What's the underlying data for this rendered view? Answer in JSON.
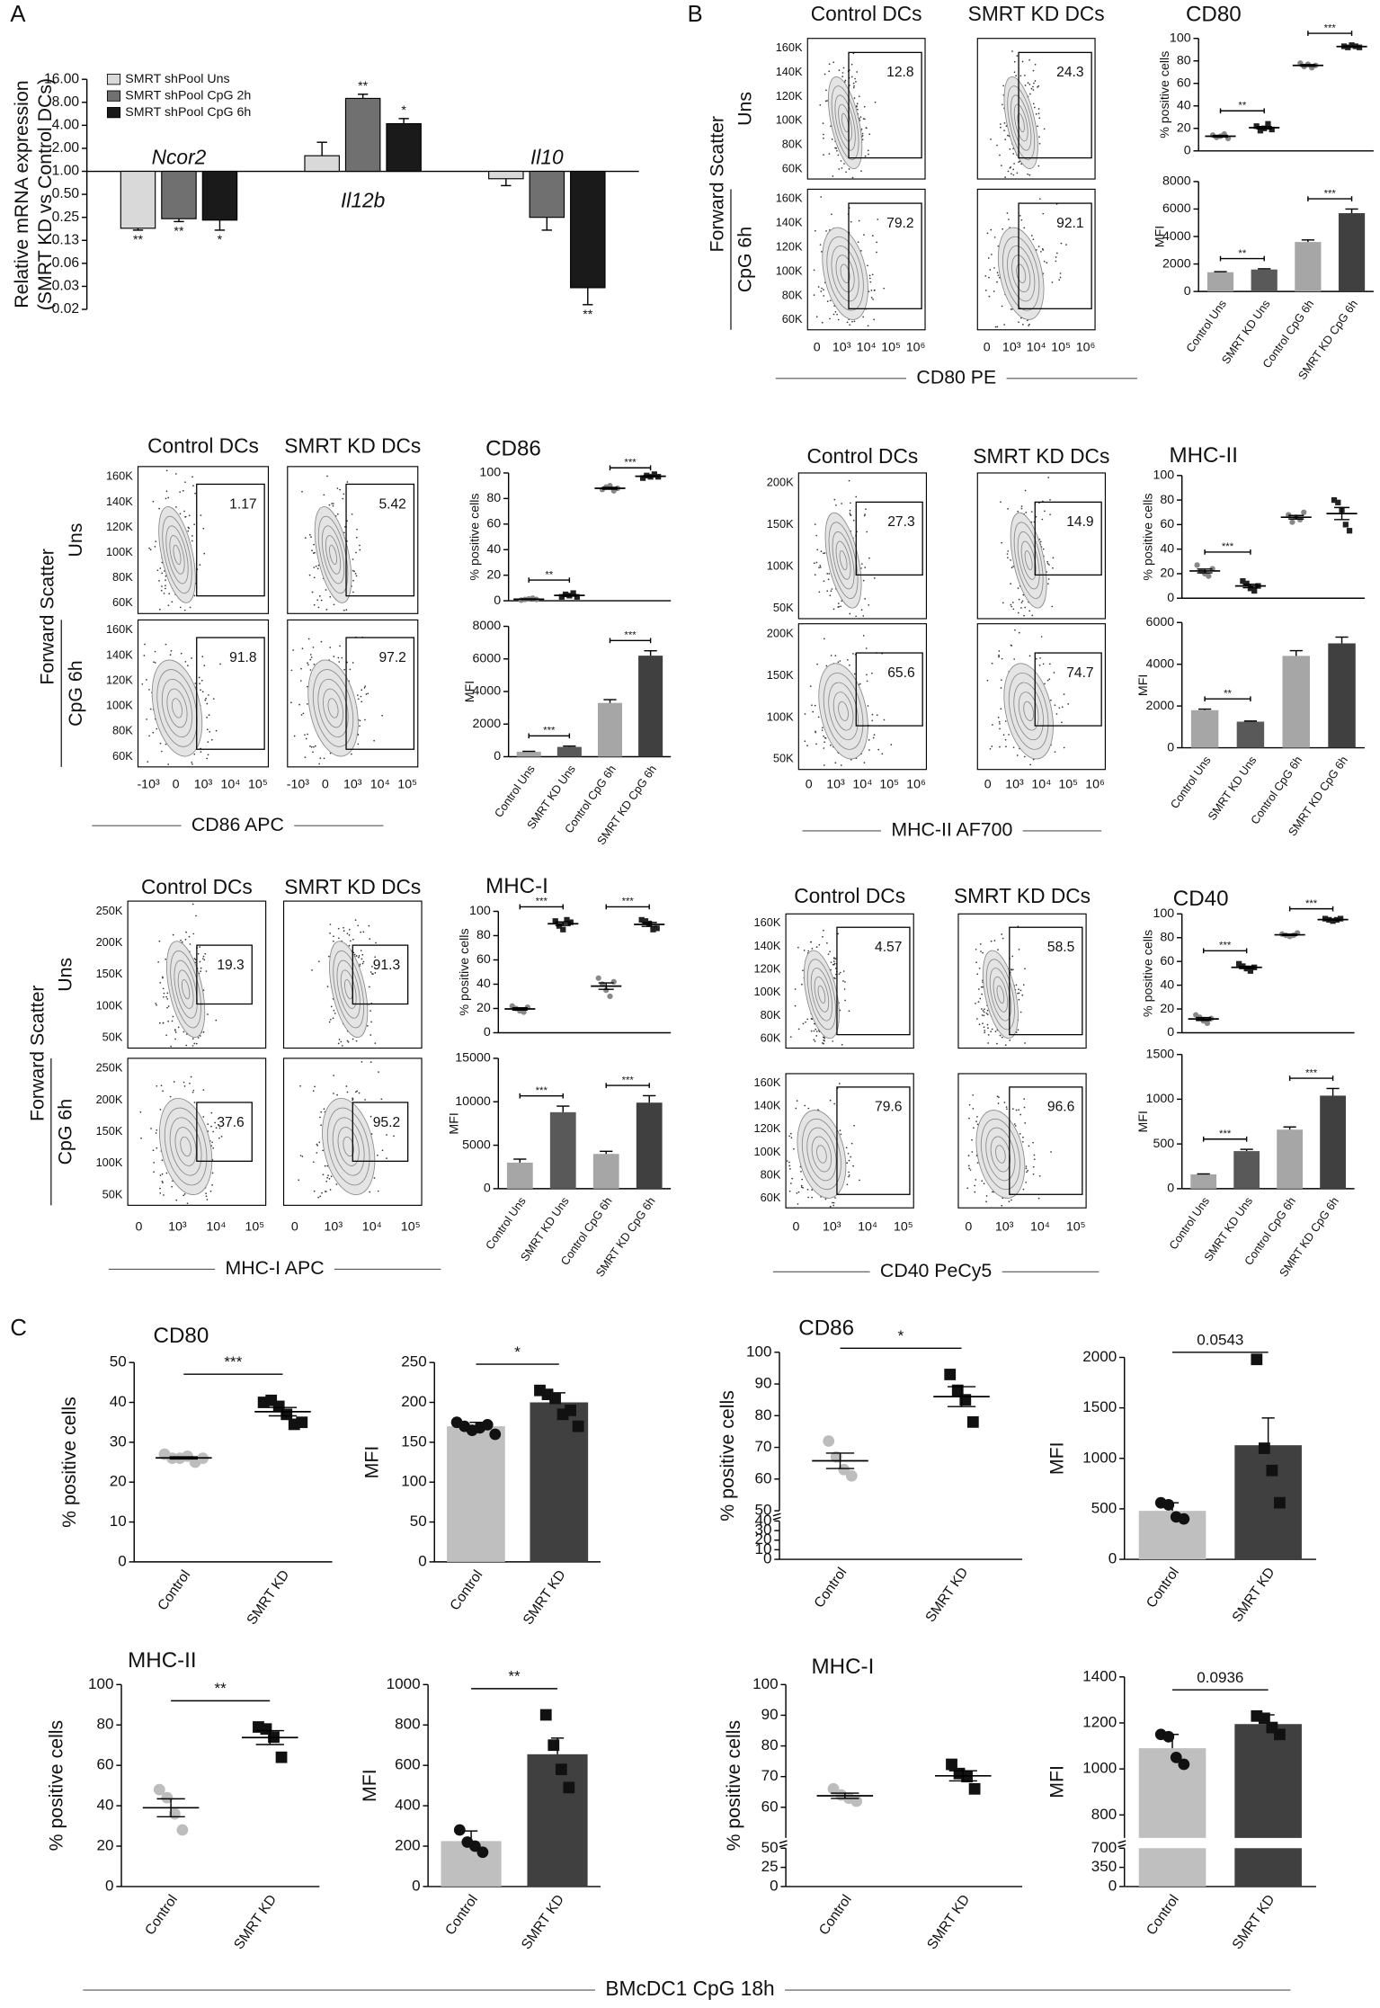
{
  "panel_labels": [
    "A",
    "B",
    "C"
  ],
  "footer_label": "BMcDC1 CpG 18h",
  "flow_blocks": [
    {
      "columns": [
        "Control DCs",
        "SMRT KD DCs"
      ],
      "rows": [
        "Uns",
        "CpG 6h"
      ],
      "ylabel": "Forward Scatter",
      "yticks": [
        "160K",
        "140K",
        "120K",
        "100K",
        "80K",
        "60K"
      ],
      "xticks": [
        "0",
        "10³",
        "10⁴",
        "10⁵",
        "10⁶"
      ],
      "xlabel": "CD80 PE",
      "gates": [
        [
          12.8,
          24.3
        ],
        [
          79.2,
          92.1
        ]
      ]
    },
    {
      "columns": [
        "Control DCs",
        "SMRT KD DCs"
      ],
      "rows": [
        "Uns",
        "CpG 6h"
      ],
      "ylabel": "Forward Scatter",
      "yticks": [
        "160K",
        "140K",
        "120K",
        "100K",
        "80K",
        "60K"
      ],
      "xticks": [
        "-10³",
        "0",
        "10³",
        "10⁴",
        "10⁵"
      ],
      "xlabel": "CD86 APC",
      "gates": [
        [
          1.17,
          5.42
        ],
        [
          91.8,
          97.2
        ]
      ]
    },
    {
      "columns": [
        "Control DCs",
        "SMRT KD DCs"
      ],
      "yticks": [
        "200K",
        "150K",
        "100K",
        "50K"
      ],
      "xticks": [
        "0",
        "10³",
        "10⁴",
        "10⁵",
        "10⁶"
      ],
      "xlabel": "MHC-II AF700",
      "gates": [
        [
          27.3,
          14.9
        ],
        [
          65.6,
          74.7
        ]
      ]
    },
    {
      "columns": [
        "Control DCs",
        "SMRT KD DCs"
      ],
      "rows": [
        "Uns",
        "CpG 6h"
      ],
      "ylabel": "Forward Scatter",
      "yticks": [
        "250K",
        "200K",
        "150K",
        "100K",
        "50K"
      ],
      "xticks": [
        "0",
        "10³",
        "10⁴",
        "10⁵"
      ],
      "xlabel": "MHC-I APC",
      "gates": [
        [
          19.3,
          91.3
        ],
        [
          37.6,
          95.2
        ]
      ]
    },
    {
      "columns": [
        "Control DCs",
        "SMRT KD DCs"
      ],
      "yticks": [
        "160K",
        "140K",
        "120K",
        "100K",
        "80K",
        "60K"
      ],
      "xticks": [
        "0",
        "10³",
        "10⁴",
        "10⁵"
      ],
      "xlabel": "CD40 PeCy5",
      "gates": [
        [
          4.57,
          58.5
        ],
        [
          79.6,
          96.6
        ]
      ]
    }
  ],
  "chart_data": [
    {
      "type": "grouped_bar",
      "log": true,
      "ylabel": [
        "Relative mRNA expression",
        "(SMRT KD vs Control DCs)"
      ],
      "categories": [
        "Ncor2",
        "Il12b",
        "Il10"
      ],
      "series": [
        {
          "name": "SMRT shPool Uns",
          "color": "#d9d9d9",
          "values": [
            0.18,
            1.6,
            0.8
          ],
          "errors": [
            0.01,
            0.8,
            0.15
          ],
          "significance": [
            "**",
            null,
            null
          ]
        },
        {
          "name": "SMRT shPool CpG 2h",
          "color": "#707070",
          "values": [
            0.24,
            9,
            0.25
          ],
          "errors": [
            0.02,
            1.2,
            0.08
          ],
          "significance": [
            "**",
            "**",
            null
          ]
        },
        {
          "name": "SMRT shPool CpG 6h",
          "color": "#1a1a1a",
          "values": [
            0.23,
            4.2,
            0.03
          ],
          "errors": [
            0.06,
            0.7,
            0.012
          ],
          "significance": [
            "*",
            "*",
            "**"
          ]
        }
      ],
      "ylim": [
        0.015625,
        16
      ],
      "yticks": [
        {
          "value": 16,
          "label": "16.00"
        },
        {
          "value": 8,
          "label": "8.00"
        },
        {
          "value": 4,
          "label": "4.00"
        },
        {
          "value": 2,
          "label": "2.00"
        },
        {
          "value": 1,
          "label": "1.00"
        },
        {
          "value": 0.5,
          "label": "0.50"
        },
        0.25,
        {
          "value": 0.125,
          "label": "0.13"
        },
        {
          "value": 0.0625,
          "label": "0.06"
        },
        {
          "value": 0.03125,
          "label": "0.03"
        },
        {
          "value": 0.015625,
          "label": "0.02"
        }
      ]
    },
    {
      "type": "dot",
      "title": "CD80",
      "ylabel": "% positive cells",
      "points": [
        [
          14,
          12,
          13,
          15,
          11
        ],
        [
          22,
          18,
          20,
          24,
          19
        ],
        [
          78,
          75,
          77,
          74,
          76
        ],
        [
          93,
          92,
          94,
          93,
          92
        ]
      ],
      "point_colors": [
        "#888888",
        "#222222",
        "#888888",
        "#222222"
      ],
      "markers": [
        "circle",
        "square",
        "circle",
        "square"
      ],
      "ylim": [
        0,
        100
      ],
      "yticks": [
        0,
        20,
        40,
        60,
        80,
        100
      ],
      "significance": [
        "**",
        "***"
      ]
    },
    {
      "type": "bar",
      "ylabel": "MFI",
      "categories": [
        "Control Uns",
        "SMRT KD Uns",
        "Control CpG 6h",
        "SMRT KD CpG 6h"
      ],
      "values": [
        1400,
        1600,
        3600,
        5700
      ],
      "errors": [
        40,
        50,
        150,
        300
      ],
      "colors": [
        "#a6a6a6",
        "#595959",
        "#a6a6a6",
        "#404040"
      ],
      "ylim": [
        0,
        8000
      ],
      "yticks": [
        0,
        2000,
        4000,
        6000,
        8000
      ],
      "significance": [
        "**",
        "***"
      ]
    },
    {
      "type": "dot",
      "title": "CD86",
      "ylabel": "% positive cells",
      "points": [
        [
          0.5,
          1,
          1.5,
          2,
          1
        ],
        [
          3,
          5,
          4,
          6,
          3
        ],
        [
          87,
          89,
          90,
          86,
          88
        ],
        [
          96,
          98,
          97,
          99,
          97
        ]
      ],
      "point_colors": [
        "#888888",
        "#222222",
        "#888888",
        "#222222"
      ],
      "markers": [
        "circle",
        "square",
        "circle",
        "square"
      ],
      "ylim": [
        0,
        100
      ],
      "yticks": [
        0,
        20,
        40,
        60,
        80,
        100
      ],
      "significance": [
        "**",
        "***"
      ]
    },
    {
      "type": "bar",
      "ylabel": "MFI",
      "categories": [
        "Control Uns",
        "SMRT KD Uns",
        "Control CpG 6h",
        "SMRT KD CpG 6h"
      ],
      "values": [
        300,
        600,
        3300,
        6200
      ],
      "errors": [
        30,
        50,
        200,
        300
      ],
      "colors": [
        "#a6a6a6",
        "#595959",
        "#a6a6a6",
        "#404040"
      ],
      "ylim": [
        0,
        8000
      ],
      "yticks": [
        0,
        2000,
        4000,
        6000,
        8000
      ],
      "significance": [
        "***",
        "***"
      ]
    },
    {
      "type": "dot",
      "title": "MHC-II",
      "ylabel": "% positive cells",
      "points": [
        [
          27,
          22,
          20,
          18,
          24
        ],
        [
          14,
          12,
          8,
          6,
          10
        ],
        [
          68,
          62,
          66,
          64,
          70
        ],
        [
          80,
          78,
          72,
          60,
          55
        ]
      ],
      "point_colors": [
        "#888888",
        "#222222",
        "#888888",
        "#222222"
      ],
      "markers": [
        "circle",
        "square",
        "circle",
        "square"
      ],
      "ylim": [
        0,
        100
      ],
      "yticks": [
        0,
        20,
        40,
        60,
        80,
        100
      ],
      "significance": [
        "***",
        null
      ]
    },
    {
      "type": "bar",
      "ylabel": "MFI",
      "categories": [
        "Control Uns",
        "SMRT KD Uns",
        "Control CpG 6h",
        "SMRT KD CpG 6h"
      ],
      "values": [
        1800,
        1250,
        4400,
        5000
      ],
      "errors": [
        50,
        30,
        250,
        300
      ],
      "colors": [
        "#a6a6a6",
        "#595959",
        "#a6a6a6",
        "#404040"
      ],
      "ylim": [
        0,
        6000
      ],
      "yticks": [
        0,
        2000,
        4000,
        6000
      ],
      "significance": [
        "**",
        null
      ]
    },
    {
      "type": "dot",
      "title": "MHC-I",
      "ylabel": "% positive cells",
      "points": [
        [
          22,
          20,
          18,
          17,
          21
        ],
        [
          92,
          88,
          85,
          93,
          91
        ],
        [
          45,
          40,
          35,
          30,
          42
        ],
        [
          93,
          92,
          90,
          85,
          86
        ]
      ],
      "point_colors": [
        "#888888",
        "#222222",
        "#888888",
        "#222222"
      ],
      "markers": [
        "circle",
        "square",
        "circle",
        "square"
      ],
      "ylim": [
        0,
        100
      ],
      "yticks": [
        0,
        20,
        40,
        60,
        80,
        100
      ],
      "significance": [
        "***",
        "***"
      ]
    },
    {
      "type": "bar",
      "ylabel": "MFI",
      "categories": [
        "Control Uns",
        "SMRT KD Uns",
        "Control CpG 6h",
        "SMRT KD CpG 6h"
      ],
      "values": [
        3000,
        8800,
        4000,
        9900
      ],
      "errors": [
        400,
        700,
        300,
        800
      ],
      "colors": [
        "#a6a6a6",
        "#595959",
        "#a6a6a6",
        "#404040"
      ],
      "ylim": [
        0,
        15000
      ],
      "yticks": [
        0,
        5000,
        10000,
        15000
      ],
      "significance": [
        "***",
        "***"
      ]
    },
    {
      "type": "dot",
      "title": "CD40",
      "ylabel": "% positive cells",
      "points": [
        [
          15,
          13,
          10,
          8,
          12
        ],
        [
          58,
          56,
          54,
          52,
          55
        ],
        [
          83,
          82,
          81,
          82,
          84
        ],
        [
          96,
          95,
          94,
          95,
          96
        ]
      ],
      "point_colors": [
        "#888888",
        "#222222",
        "#888888",
        "#222222"
      ],
      "markers": [
        "circle",
        "square",
        "circle",
        "square"
      ],
      "ylim": [
        0,
        100
      ],
      "yticks": [
        0,
        20,
        40,
        60,
        80,
        100
      ],
      "significance": [
        "***",
        "***"
      ]
    },
    {
      "type": "bar",
      "ylabel": "MFI",
      "categories": [
        "Control Uns",
        "SMRT KD Uns",
        "Control CpG 6h",
        "SMRT KD CpG 6h"
      ],
      "values": [
        160,
        420,
        660,
        1040
      ],
      "errors": [
        5,
        20,
        30,
        80
      ],
      "colors": [
        "#a6a6a6",
        "#595959",
        "#a6a6a6",
        "#404040"
      ],
      "ylim": [
        0,
        1500
      ],
      "yticks": [
        0,
        500,
        1000,
        1500
      ],
      "significance": [
        "***",
        "***"
      ]
    },
    {
      "type": "dot",
      "title": "CD80",
      "ylabel": "% positive cells",
      "categories": [
        "Control",
        "SMRT KD"
      ],
      "points": [
        [
          27,
          26,
          26,
          26.5,
          25,
          26
        ],
        [
          40,
          40.5,
          39,
          37,
          34.5,
          35
        ]
      ],
      "point_colors": [
        "#bdbdbd",
        "#111111"
      ],
      "markers": [
        "circle",
        "square"
      ],
      "ylim": [
        0,
        50
      ],
      "yticks": [
        0,
        10,
        20,
        30,
        40,
        50
      ],
      "significance": [
        "***"
      ]
    },
    {
      "type": "bar",
      "ylabel": "MFI",
      "categories": [
        "Control",
        "SMRT KD"
      ],
      "values": [
        170,
        200
      ],
      "errors": [
        5,
        12
      ],
      "colors": [
        "#bfbfbf",
        "#404040"
      ],
      "points": [
        [
          175,
          170,
          165,
          168,
          172,
          160
        ],
        [
          215,
          210,
          205,
          185,
          190,
          170
        ]
      ],
      "point_colors": [
        "#111111",
        "#111111"
      ],
      "markers": [
        "circle",
        "square"
      ],
      "ylim": [
        0,
        250
      ],
      "yticks": [
        0,
        50,
        100,
        150,
        200,
        250
      ],
      "significance": [
        "*"
      ]
    },
    {
      "type": "dot",
      "title": "CD86",
      "ylabel": "% positive cells",
      "categories": [
        "Control",
        "SMRT KD"
      ],
      "points": [
        [
          72,
          67,
          63,
          61
        ],
        [
          93,
          88,
          85,
          78
        ]
      ],
      "point_colors": [
        "#bdbdbd",
        "#111111"
      ],
      "markers": [
        "circle",
        "square"
      ],
      "ylim": [
        0,
        100
      ],
      "yticks": [
        0,
        10,
        20,
        30,
        40,
        50,
        60,
        70,
        80,
        90,
        100
      ],
      "ybreak": [
        40,
        50
      ],
      "significance": [
        "*"
      ]
    },
    {
      "type": "bar",
      "ylabel": "MFI",
      "categories": [
        "Control",
        "SMRT KD"
      ],
      "values": [
        480,
        1130
      ],
      "errors": [
        80,
        270
      ],
      "colors": [
        "#bfbfbf",
        "#404040"
      ],
      "points": [
        [
          560,
          540,
          420,
          400
        ],
        [
          1980,
          1100,
          880,
          560
        ]
      ],
      "point_colors": [
        "#111111",
        "#111111"
      ],
      "markers": [
        "circle",
        "square"
      ],
      "ylim": [
        0,
        2000
      ],
      "yticks": [
        0,
        500,
        1000,
        1500,
        2000
      ],
      "significance": [
        "0.0543"
      ]
    },
    {
      "type": "dot",
      "title": "MHC-II",
      "ylabel": "% positive cells",
      "categories": [
        "Control",
        "SMRT KD"
      ],
      "points": [
        [
          48,
          44,
          36,
          28
        ],
        [
          79,
          78,
          74,
          64
        ]
      ],
      "point_colors": [
        "#bdbdbd",
        "#111111"
      ],
      "markers": [
        "circle",
        "square"
      ],
      "ylim": [
        0,
        100
      ],
      "yticks": [
        0,
        20,
        40,
        60,
        80,
        100
      ],
      "significance": [
        "**"
      ]
    },
    {
      "type": "bar",
      "ylabel": "MFI",
      "categories": [
        "Control",
        "SMRT KD"
      ],
      "values": [
        225,
        655
      ],
      "errors": [
        50,
        80
      ],
      "colors": [
        "#bfbfbf",
        "#404040"
      ],
      "points": [
        [
          280,
          220,
          200,
          170
        ],
        [
          850,
          700,
          580,
          490
        ]
      ],
      "point_colors": [
        "#111111",
        "#111111"
      ],
      "markers": [
        "circle",
        "square"
      ],
      "ylim": [
        0,
        1000
      ],
      "yticks": [
        0,
        200,
        400,
        600,
        800,
        1000
      ],
      "significance": [
        "**"
      ]
    },
    {
      "type": "dot",
      "title": "MHC-I",
      "ylabel": "% positive cells",
      "categories": [
        "Control",
        "SMRT KD"
      ],
      "points": [
        [
          66,
          64,
          63,
          62
        ],
        [
          74,
          71,
          70,
          66
        ]
      ],
      "point_colors": [
        "#bdbdbd",
        "#111111"
      ],
      "markers": [
        "circle",
        "square"
      ],
      "ylim": [
        0,
        100
      ],
      "yticks": [
        0,
        25,
        50,
        60,
        70,
        80,
        90,
        100
      ],
      "ybreak": [
        50,
        50
      ]
    },
    {
      "type": "bar",
      "ylabel": "MFI",
      "categories": [
        "Control",
        "SMRT KD"
      ],
      "values": [
        1090,
        1195
      ],
      "errors": [
        60,
        40
      ],
      "colors": [
        "#bfbfbf",
        "#404040"
      ],
      "points": [
        [
          1150,
          1140,
          1050,
          1020
        ],
        [
          1230,
          1220,
          1180,
          1150
        ]
      ],
      "point_colors": [
        "#111111",
        "#111111"
      ],
      "markers": [
        "circle",
        "square"
      ],
      "ylim": [
        0,
        1400
      ],
      "yticks": [
        0,
        350,
        700,
        800,
        1000,
        1200,
        1400
      ],
      "ybreak": [
        700,
        700
      ],
      "significance": [
        "0.0936"
      ]
    }
  ]
}
